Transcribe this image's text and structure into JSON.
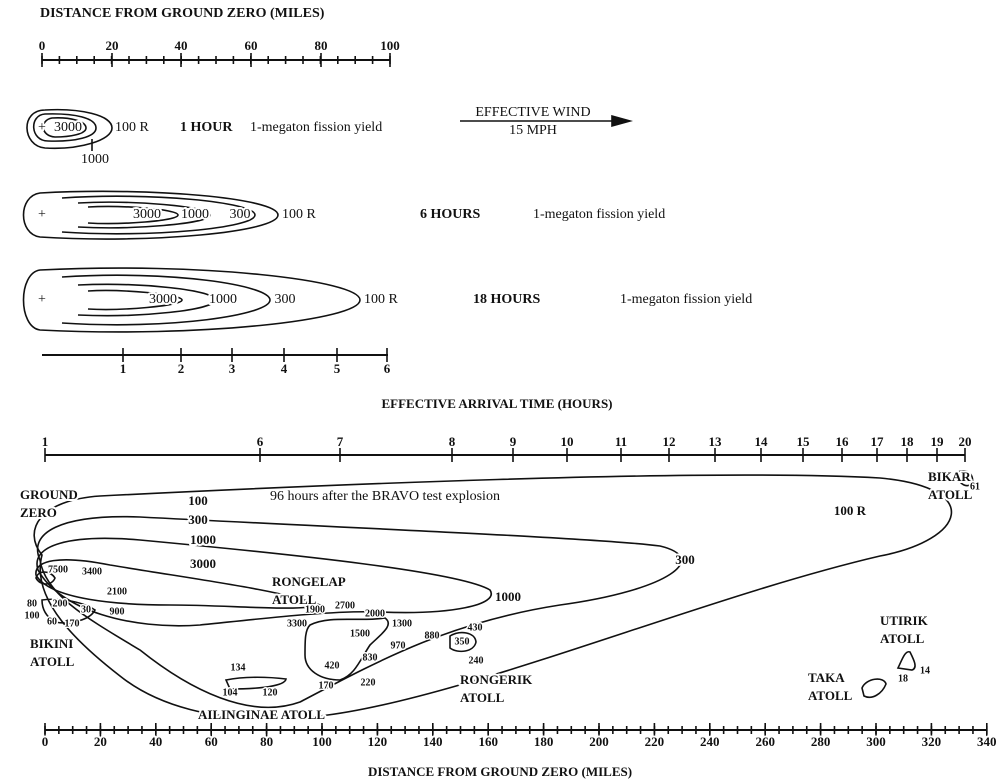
{
  "top_scale": {
    "title": "DISTANCE FROM GROUND ZERO (MILES)",
    "ticks": [
      "0",
      "20",
      "40",
      "60",
      "80",
      "100"
    ]
  },
  "panels": [
    {
      "contours": [
        "3000",
        "1000"
      ],
      "outer": "100 R",
      "time": "1 HOUR",
      "yield": "1-megaton fission yield"
    },
    {
      "contours": [
        "3000",
        "1000",
        "300"
      ],
      "outer": "100 R",
      "time": "6 HOURS",
      "yield": "1-megaton fission yield"
    },
    {
      "contours": [
        "3000",
        "1000",
        "300"
      ],
      "outer": "100 R",
      "time": "18 HOURS",
      "yield": "1-megaton fission yield"
    }
  ],
  "wind": {
    "label": "EFFECTIVE WIND",
    "speed": "15 MPH"
  },
  "time_scale": {
    "ticks": [
      "1",
      "2",
      "3",
      "4",
      "5",
      "6"
    ],
    "title": "EFFECTIVE ARRIVAL TIME (HOURS)"
  },
  "bravo": {
    "arrival_ticks": [
      "1",
      "6",
      "7",
      "8",
      "9",
      "10",
      "11",
      "12",
      "13",
      "14",
      "15",
      "16",
      "17",
      "18",
      "19",
      "20"
    ],
    "caption": "96 hours after the BRAVO test explosion",
    "contour_labels": [
      "100",
      "300",
      "1000",
      "3000",
      "100 R",
      "300",
      "1000"
    ],
    "places": [
      {
        "lines": [
          "GROUND",
          "ZERO"
        ]
      },
      {
        "lines": [
          "RONGELAP",
          "ATOLL"
        ]
      },
      {
        "lines": [
          "BIKINI",
          "ATOLL"
        ]
      },
      {
        "lines": [
          "RONGERIK",
          "ATOLL"
        ]
      },
      {
        "lines": [
          "AILINGINAE ATOLL"
        ]
      },
      {
        "lines": [
          "BIKAR",
          "ATOLL"
        ]
      },
      {
        "lines": [
          "UTIRIK",
          "ATOLL"
        ]
      },
      {
        "lines": [
          "TAKA",
          "ATOLL"
        ]
      }
    ],
    "readings": [
      "7500",
      "3400",
      "2100",
      "900",
      "80",
      "200",
      "30",
      "100",
      "60",
      "170",
      "1900",
      "2700",
      "2000",
      "1300",
      "3300",
      "1500",
      "970",
      "880",
      "430",
      "350",
      "240",
      "830",
      "420",
      "170",
      "220",
      "134",
      "104",
      "120",
      "61",
      "14",
      "18"
    ],
    "distance_ticks": [
      "0",
      "20",
      "40",
      "60",
      "80",
      "100",
      "120",
      "140",
      "160",
      "180",
      "200",
      "220",
      "240",
      "260",
      "280",
      "300",
      "320",
      "340"
    ],
    "distance_title": "DISTANCE FROM GROUND ZERO (MILES)"
  }
}
